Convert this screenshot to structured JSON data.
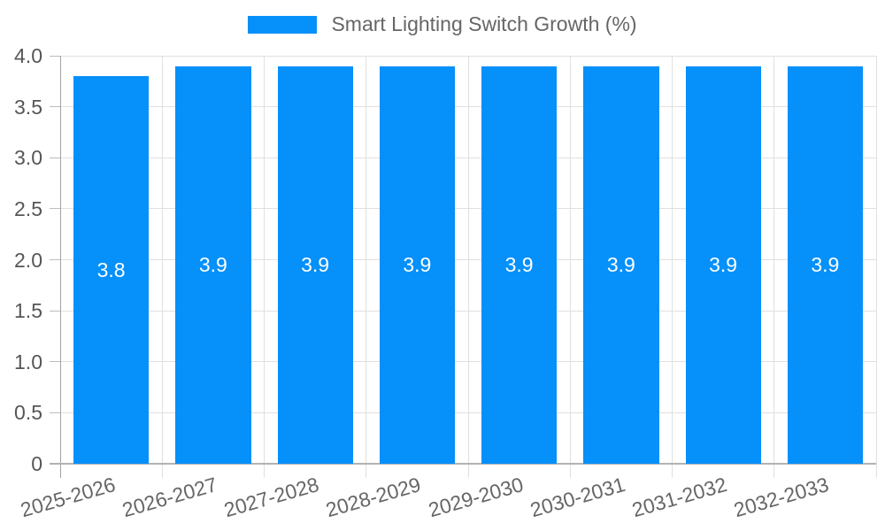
{
  "legend": {
    "label": "Smart Lighting Switch Growth (%)"
  },
  "chart_data": {
    "type": "bar",
    "title": "Smart Lighting Switch Growth (%)",
    "categories": [
      "2025-2026",
      "2026-2027",
      "2027-2028",
      "2028-2029",
      "2029-2030",
      "2030-2031",
      "2031-2032",
      "2032-2033"
    ],
    "values": [
      3.8,
      3.9,
      3.9,
      3.9,
      3.9,
      3.9,
      3.9,
      3.9
    ],
    "value_labels": [
      "3.8",
      "3.9",
      "3.9",
      "3.9",
      "3.9",
      "3.9",
      "3.9",
      "3.9"
    ],
    "xlabel": "",
    "ylabel": "",
    "ylim": [
      0,
      4
    ],
    "ytick_values": [
      0,
      0.5,
      1.0,
      1.5,
      2.0,
      2.5,
      3.0,
      3.5,
      4.0
    ],
    "ytick_labels": [
      "0",
      "0.5",
      "1.0",
      "1.5",
      "2.0",
      "2.5",
      "3.0",
      "3.5",
      "4.0"
    ],
    "grid": true,
    "legend_position": "top-center",
    "colors": {
      "bar": "#0590fa",
      "bar_value_text": "#ffffff",
      "grid": "#e0e0e0",
      "y_axis_line": "#a3a3a3",
      "x_axis_line": "#b2b2b2",
      "tick": "#bdbdbd",
      "ytick_text": "#565656",
      "xtick_text": "#666666",
      "legend_text": "#666666",
      "background": "#ffffff"
    }
  }
}
